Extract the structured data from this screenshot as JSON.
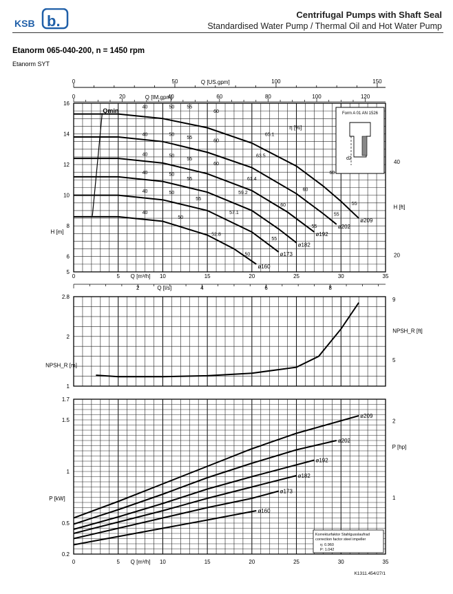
{
  "brand": {
    "name": "KSB",
    "badge": "b."
  },
  "header": {
    "title": "Centrifugal Pumps with Shaft Seal",
    "subtitle": "Standardised Water Pump / Thermal Oil and Hot Water Pump"
  },
  "pump": {
    "title": "Etanorm 065-040-200, n = 1450 rpm",
    "subtitle": "Etanorm SYT"
  },
  "footer": {
    "code": "K1311.454/27/1"
  },
  "chart_data": [
    {
      "id": "head",
      "type": "line",
      "title": "",
      "xlabel": "Q [m³/h]",
      "ylabel": "H [m]",
      "y2label": "H [ft]",
      "xlim": [
        0,
        35
      ],
      "ylim": [
        5,
        16
      ],
      "yticks": [
        5,
        6,
        8,
        10,
        12,
        14,
        16
      ],
      "xticks": [
        0,
        5,
        10,
        15,
        20,
        25,
        30,
        35
      ],
      "y2ticks": [
        20,
        40
      ],
      "y2factor": 3.2808,
      "top_axis_usgpm": {
        "label": "Q [US.gpm]",
        "ticks": [
          0,
          50,
          100,
          150
        ]
      },
      "top_axis_imgpm": {
        "label": "Q [IM.gpm]",
        "ticks": [
          0,
          20,
          40,
          60,
          80,
          100,
          120
        ]
      },
      "bottom_axis_ls": {
        "label": "Q [l/s]",
        "ticks": [
          2,
          4,
          6,
          8
        ]
      },
      "qmin": {
        "label": "Qmin",
        "q": 3.2
      },
      "efficiency_label": "η [%]",
      "series": [
        {
          "name": "ø209",
          "x": [
            0,
            5,
            10,
            15,
            20,
            25,
            28,
            30,
            32
          ],
          "y": [
            15.3,
            15.3,
            15.0,
            14.4,
            13.4,
            11.9,
            10.6,
            9.6,
            8.5
          ]
        },
        {
          "name": "ø202",
          "x": [
            0,
            5,
            10,
            15,
            20,
            25,
            28,
            29.5
          ],
          "y": [
            13.8,
            13.8,
            13.5,
            12.8,
            11.8,
            10.1,
            8.8,
            8.1
          ]
        },
        {
          "name": "ø192",
          "x": [
            0,
            5,
            10,
            15,
            20,
            24,
            27
          ],
          "y": [
            12.4,
            12.4,
            12.1,
            11.4,
            10.3,
            8.9,
            7.6
          ]
        },
        {
          "name": "ø182",
          "x": [
            0,
            5,
            10,
            15,
            20,
            23,
            25
          ],
          "y": [
            11.2,
            11.2,
            10.9,
            10.2,
            9.0,
            7.8,
            6.9
          ]
        },
        {
          "name": "ø173",
          "x": [
            0,
            5,
            10,
            15,
            20,
            23
          ],
          "y": [
            10.0,
            10.0,
            9.7,
            9.0,
            7.6,
            6.3
          ]
        },
        {
          "name": "ø160",
          "x": [
            0,
            5,
            10,
            15,
            18,
            20.5
          ],
          "y": [
            8.6,
            8.6,
            8.3,
            7.4,
            6.5,
            5.5
          ]
        }
      ],
      "eff_labels": [
        {
          "q": 8,
          "h": 15.8,
          "t": "40"
        },
        {
          "q": 11,
          "h": 15.8,
          "t": "50"
        },
        {
          "q": 13,
          "h": 15.8,
          "t": "55"
        },
        {
          "q": 16,
          "h": 15.5,
          "t": "60"
        },
        {
          "q": 22,
          "h": 14.0,
          "t": "65.1"
        },
        {
          "q": 8,
          "h": 14.0,
          "t": "40"
        },
        {
          "q": 11,
          "h": 14.0,
          "t": "50"
        },
        {
          "q": 13,
          "h": 13.8,
          "t": "55"
        },
        {
          "q": 16,
          "h": 13.6,
          "t": "60"
        },
        {
          "q": 21,
          "h": 12.6,
          "t": "63.5"
        },
        {
          "q": 8,
          "h": 12.7,
          "t": "40"
        },
        {
          "q": 11,
          "h": 12.6,
          "t": "50"
        },
        {
          "q": 13,
          "h": 12.4,
          "t": "55"
        },
        {
          "q": 16,
          "h": 12.1,
          "t": "60"
        },
        {
          "q": 20,
          "h": 11.1,
          "t": "61.4"
        },
        {
          "q": 8,
          "h": 11.5,
          "t": "40"
        },
        {
          "q": 11,
          "h": 11.4,
          "t": "50"
        },
        {
          "q": 13,
          "h": 11.1,
          "t": "55"
        },
        {
          "q": 19,
          "h": 10.2,
          "t": "59.2"
        },
        {
          "q": 8,
          "h": 10.3,
          "t": "40"
        },
        {
          "q": 11,
          "h": 10.2,
          "t": "50"
        },
        {
          "q": 14,
          "h": 9.8,
          "t": "55"
        },
        {
          "q": 18,
          "h": 8.9,
          "t": "57.1"
        },
        {
          "q": 8,
          "h": 8.9,
          "t": "40"
        },
        {
          "q": 12,
          "h": 8.6,
          "t": "50"
        },
        {
          "q": 16,
          "h": 7.5,
          "t": "52.8"
        },
        {
          "q": 19.5,
          "h": 6.2,
          "t": "50"
        },
        {
          "q": 22.5,
          "h": 7.2,
          "t": "55"
        },
        {
          "q": 23.5,
          "h": 9.4,
          "t": "60"
        },
        {
          "q": 26,
          "h": 10.4,
          "t": "60"
        },
        {
          "q": 27,
          "h": 8.0,
          "t": "55"
        },
        {
          "q": 29,
          "h": 11.5,
          "t": "60"
        },
        {
          "q": 29.5,
          "h": 8.8,
          "t": "55"
        },
        {
          "q": 31.5,
          "h": 9.5,
          "t": "55"
        }
      ],
      "inset": {
        "title": "Form A 01 AN 1526",
        "label": "d2"
      }
    },
    {
      "id": "npsh",
      "type": "line",
      "xlabel": "",
      "ylabel": "NPSH_R [m]",
      "y2label": "NPSH_R [ft]",
      "xlim": [
        0,
        35
      ],
      "ylim": [
        1,
        2.8
      ],
      "yticks": [
        1,
        2,
        2.8
      ],
      "y2ticks": [
        5,
        9
      ],
      "y2factor": 3.2808,
      "series": [
        {
          "name": "NPSH",
          "x": [
            2.5,
            5,
            10,
            15,
            20,
            25,
            27.5,
            30,
            32
          ],
          "y": [
            1.22,
            1.19,
            1.19,
            1.21,
            1.26,
            1.38,
            1.6,
            2.15,
            2.68
          ]
        }
      ]
    },
    {
      "id": "power",
      "type": "line",
      "xlabel": "Q [m³/h]",
      "ylabel": "P [kW]",
      "y2label": "P [hp]",
      "xlim": [
        0,
        35
      ],
      "ylim": [
        0.2,
        1.7
      ],
      "yticks": [
        0.2,
        0.5,
        1.0,
        1.5,
        1.7
      ],
      "xticks": [
        0,
        5,
        10,
        15,
        20,
        25,
        30,
        35
      ],
      "y2ticks": [
        1,
        2
      ],
      "y2factor": 1.341,
      "series": [
        {
          "name": "ø209",
          "x": [
            0,
            5,
            10,
            15,
            20,
            25,
            32
          ],
          "y": [
            0.55,
            0.71,
            0.88,
            1.05,
            1.22,
            1.37,
            1.54
          ]
        },
        {
          "name": "ø202",
          "x": [
            0,
            5,
            10,
            15,
            20,
            25,
            29.5
          ],
          "y": [
            0.49,
            0.63,
            0.78,
            0.94,
            1.08,
            1.21,
            1.3
          ]
        },
        {
          "name": "ø192",
          "x": [
            0,
            5,
            10,
            15,
            20,
            27
          ],
          "y": [
            0.44,
            0.56,
            0.69,
            0.83,
            0.95,
            1.11
          ]
        },
        {
          "name": "ø182",
          "x": [
            0,
            5,
            10,
            15,
            20,
            25
          ],
          "y": [
            0.4,
            0.51,
            0.62,
            0.74,
            0.85,
            0.96
          ]
        },
        {
          "name": "ø173",
          "x": [
            0,
            5,
            10,
            15,
            20,
            23
          ],
          "y": [
            0.35,
            0.45,
            0.55,
            0.65,
            0.74,
            0.81
          ]
        },
        {
          "name": "ø160",
          "x": [
            0,
            5,
            10,
            15,
            20.5
          ],
          "y": [
            0.29,
            0.37,
            0.45,
            0.53,
            0.62
          ]
        }
      ],
      "note": {
        "line1": "Korrekturfaktor Stahlgusslaufrad",
        "line2": "correction factor steel impeller",
        "line3": "η: 0.960",
        "line4": "P: 1.042"
      }
    }
  ]
}
